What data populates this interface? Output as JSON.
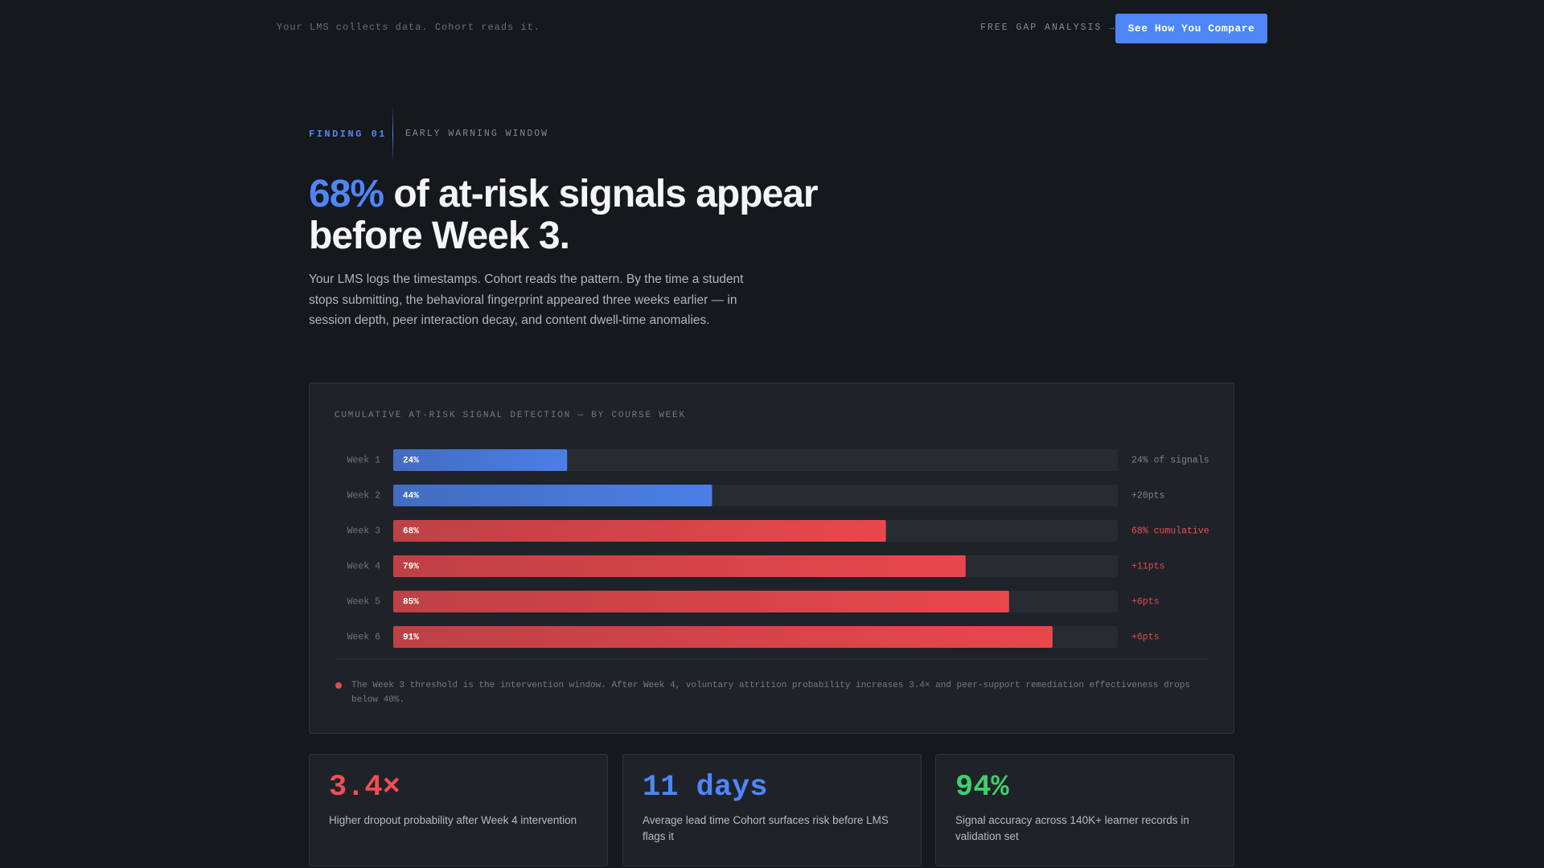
{
  "header": {
    "tagline": "Your LMS collects data. Cohort reads it.",
    "link": "FREE GAP ANALYSIS →",
    "button": "See How You Compare"
  },
  "finding": {
    "number": "FINDING 01",
    "topic": "EARLY WARNING WINDOW"
  },
  "hero": {
    "title_highlight": "68%",
    "title_rest": "of at-risk signals appear before Week 3.",
    "body": "Your LMS logs the timestamps. Cohort reads the pattern. By the time a student stops submitting, the behavioral fingerprint appeared three weeks earlier — in session depth, peer interaction decay, and content dwell-time anomalies."
  },
  "chart_data": {
    "type": "bar",
    "orientation": "horizontal",
    "title": "CUMULATIVE AT-RISK SIGNAL DETECTION — BY COURSE WEEK",
    "categories": [
      "Week 1",
      "Week 2",
      "Week 3",
      "Week 4",
      "Week 5",
      "Week 6"
    ],
    "values": [
      24,
      44,
      68,
      79,
      85,
      91
    ],
    "value_labels": [
      "24%",
      "44%",
      "68%",
      "79%",
      "85%",
      "91%"
    ],
    "colors": [
      "#4a7fe6",
      "#4a7fe6",
      "#e8474c",
      "#e8474c",
      "#e8474c",
      "#e8474c"
    ],
    "annotations": [
      "24% of signals",
      "+20pts",
      "68% cumulative",
      "+11pts",
      "+6pts",
      "+6pts"
    ],
    "annotation_colors": [
      "#7d838c",
      "#7d838c",
      "#ef4f54",
      "#e5484d",
      "#e5484d",
      "#e5484d"
    ],
    "xlim": [
      0,
      100
    ],
    "note": "The Week 3 threshold is the intervention window. After Week 4, voluntary attrition probability increases 3.4× and peer-support remediation effectiveness drops below 40%."
  },
  "stats": [
    {
      "value": "3.4×",
      "label": "Higher dropout probability after Week 4 intervention",
      "color": "#ef4f54"
    },
    {
      "value": "11 days",
      "label": "Average lead time Cohort surfaces risk before LMS flags it",
      "color": "#4f86f7"
    },
    {
      "value": "94%",
      "label": "Signal accuracy across 140K+ learner records in validation set",
      "color": "#3ecf6e"
    }
  ]
}
